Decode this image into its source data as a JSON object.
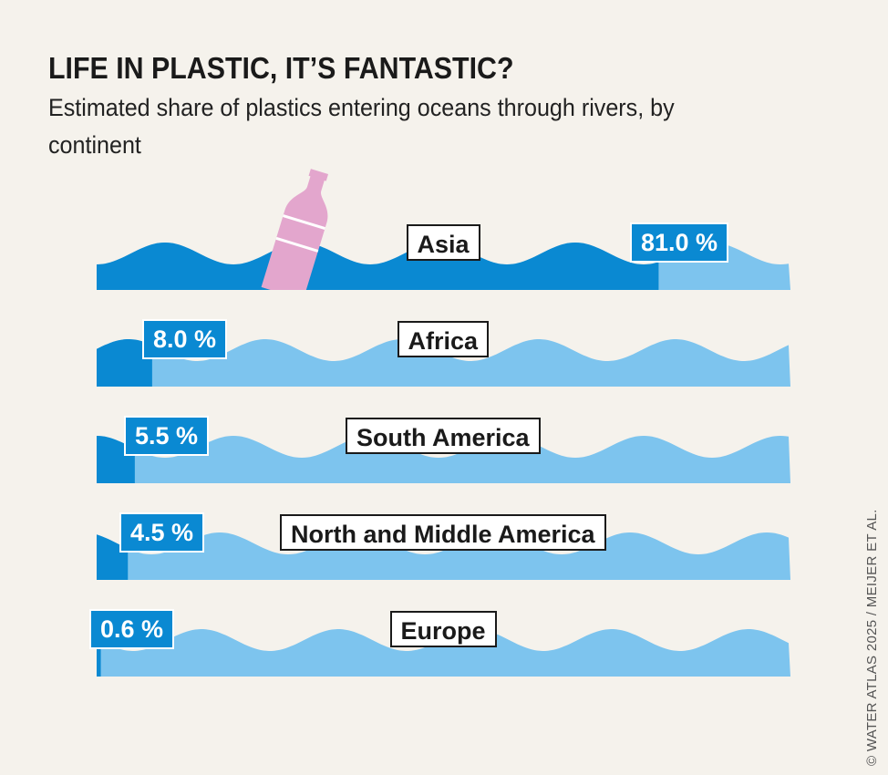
{
  "header": {
    "title": "LIFE IN PLASTIC, IT’S FANTASTIC?",
    "subtitle": "Estimated share of plastics entering oceans through rivers, by continent"
  },
  "credit": "© WATER ATLAS 2025 / MEIJER ET AL.",
  "colors": {
    "background": "#f5f2ec",
    "share_dark_blue": "#0a89d2",
    "remainder_light_blue": "#7dc4ee",
    "bottle_pink": "#e3a6cd"
  },
  "bars": [
    {
      "continent": "Asia",
      "value_label": "81.0 %"
    },
    {
      "continent": "Africa",
      "value_label": "8.0 %"
    },
    {
      "continent": "South America",
      "value_label": "5.5 %"
    },
    {
      "continent": "North and Middle America",
      "value_label": "4.5 %"
    },
    {
      "continent": "Europe",
      "value_label": "0.6 %"
    }
  ],
  "chart_data": {
    "type": "bar",
    "orientation": "horizontal",
    "title": "LIFE IN PLASTIC, IT’S FANTASTIC?",
    "subtitle": "Estimated share of plastics entering oceans through rivers, by continent",
    "categories": [
      "Asia",
      "Africa",
      "South America",
      "North and Middle America",
      "Europe"
    ],
    "values": [
      81.0,
      8.0,
      5.5,
      4.5,
      0.6
    ],
    "unit": "%",
    "xlim": [
      0,
      100
    ],
    "xlabel": "",
    "ylabel": "",
    "grid": false,
    "legend": null,
    "annotations": [
      "Plastic bottle illustration floating in Asia wave"
    ],
    "source": "© WATER ATLAS 2025 / MEIJER ET AL."
  }
}
